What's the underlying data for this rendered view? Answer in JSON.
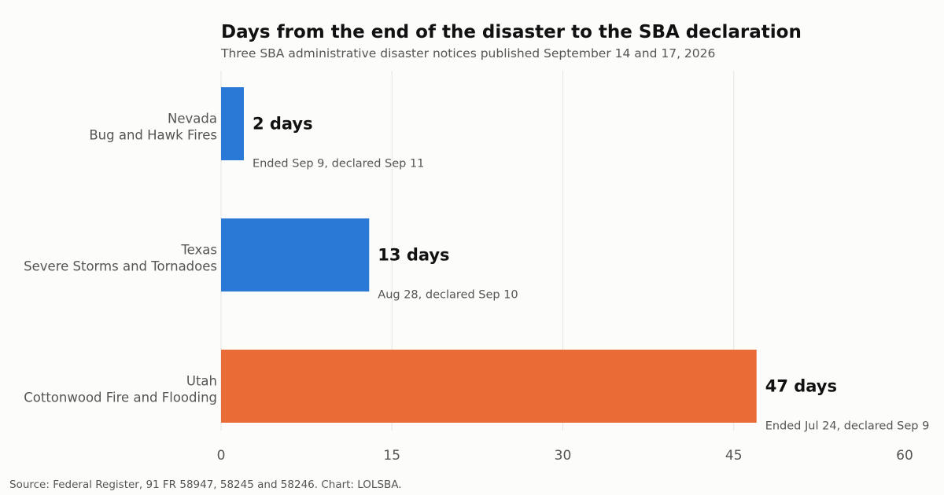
{
  "title": "Days from the end of the disaster to the SBA declaration",
  "subtitle": "Three SBA administrative disaster notices published September 14 and 17, 2026",
  "source": "Source: Federal Register, 91 FR 58947, 58245 and 58246. Chart: LOLSBA.",
  "colors": {
    "highlight": "#e96b36",
    "default": "#2a79d6",
    "background": "#fcfcfa",
    "gridline": "#e4e4e2"
  },
  "chart_data": {
    "type": "bar",
    "orientation": "horizontal",
    "title": "Days from the end of the disaster to the SBA declaration",
    "subtitle": "Three SBA administrative disaster notices published September 14 and 17, 2026",
    "categories": [
      "Nevada\nBug and Hawk Fires",
      "Texas\nSevere Storms and Tornadoes",
      "Utah\nCottonwood Fire and Flooding"
    ],
    "values": [
      2,
      13,
      47
    ],
    "value_labels": [
      "2 days",
      "13 days",
      "47 days"
    ],
    "notes": [
      "Ended Sep 9, declared Sep 11",
      "Aug 28, declared Sep 10",
      "Ended Jul 24, declared Sep 9"
    ],
    "bar_colors": [
      "#2a79d6",
      "#2a79d6",
      "#e96b36"
    ],
    "xlim": [
      0,
      60
    ],
    "xticks": [
      0,
      15,
      30,
      45,
      60
    ],
    "tick_labels": [
      "0",
      "15",
      "30",
      "45",
      "60"
    ],
    "xlabel": "",
    "ylabel": "",
    "grid": "vertical",
    "legend": "none"
  }
}
